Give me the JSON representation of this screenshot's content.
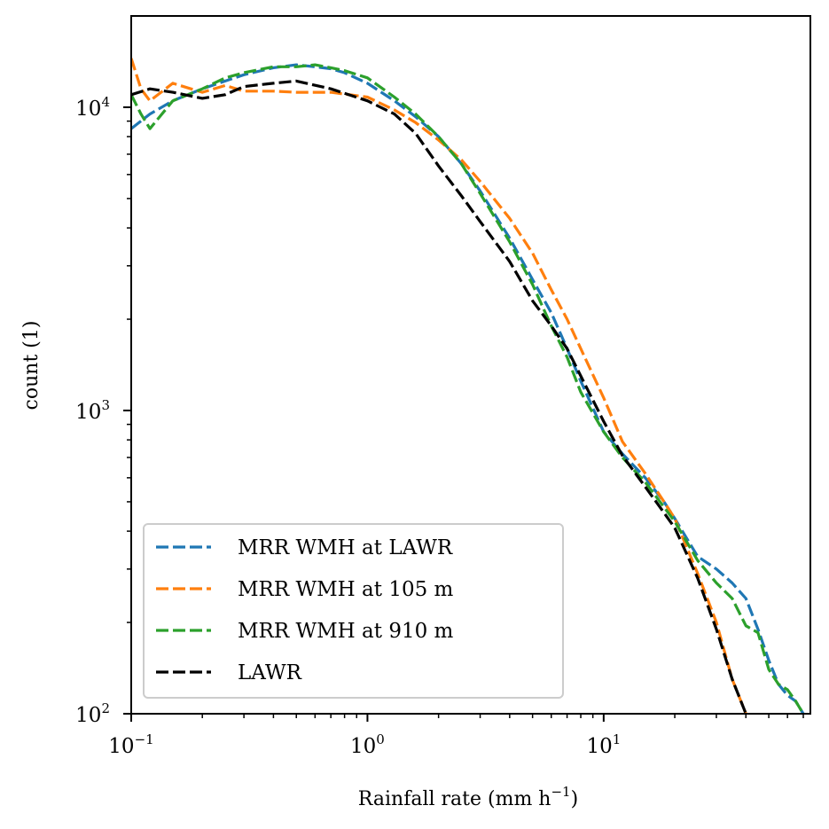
{
  "chart_data": {
    "type": "line",
    "xscale": "log",
    "yscale": "log",
    "xlabel_base": "Rainfall rate (mm h",
    "xlabel_exp": "−1",
    "xlabel_close": ")",
    "ylabel": "count (1)",
    "xlim": [
      0.1,
      75
    ],
    "ylim": [
      100,
      20000
    ],
    "x_ticks": [
      {
        "value": 0.1,
        "base": "10",
        "exp": "−1"
      },
      {
        "value": 1,
        "base": "10",
        "exp": "0"
      },
      {
        "value": 10,
        "base": "10",
        "exp": "1"
      }
    ],
    "y_ticks": [
      {
        "value": 100,
        "base": "10",
        "exp": "2"
      },
      {
        "value": 1000,
        "base": "10",
        "exp": "3"
      },
      {
        "value": 10000,
        "base": "10",
        "exp": "4"
      }
    ],
    "legend_position": "lower-left",
    "series": [
      {
        "name": "MRR WMH at LAWR",
        "color": "#1f77b4",
        "x": [
          0.1,
          0.12,
          0.15,
          0.2,
          0.25,
          0.3,
          0.4,
          0.5,
          0.6,
          0.7,
          0.8,
          1.0,
          1.3,
          1.6,
          2.0,
          2.5,
          3.0,
          4.0,
          5.0,
          6.0,
          7.0,
          8.0,
          10,
          12,
          15,
          18,
          20,
          25,
          30,
          35,
          40,
          45,
          50,
          55,
          60,
          65,
          70
        ],
        "values": [
          8500,
          9500,
          10500,
          11500,
          12200,
          12800,
          13500,
          13800,
          13600,
          13400,
          13000,
          12000,
          10500,
          9300,
          8000,
          6500,
          5300,
          3700,
          2700,
          2100,
          1600,
          1250,
          850,
          720,
          600,
          500,
          440,
          330,
          300,
          270,
          240,
          190,
          150,
          125,
          115,
          110,
          100
        ]
      },
      {
        "name": "MRR WMH at 105 m",
        "color": "#ff7f0e",
        "x": [
          0.1,
          0.11,
          0.12,
          0.15,
          0.2,
          0.25,
          0.3,
          0.4,
          0.5,
          0.7,
          1.0,
          1.3,
          1.6,
          2.0,
          2.5,
          3.0,
          4.0,
          5.0,
          6.0,
          7.0,
          8.0,
          10,
          12,
          15,
          18,
          20,
          25,
          30,
          35,
          40
        ],
        "values": [
          14500,
          11500,
          10500,
          12000,
          11200,
          11800,
          11300,
          11300,
          11200,
          11200,
          10800,
          9800,
          8900,
          7800,
          6700,
          5700,
          4300,
          3300,
          2500,
          2000,
          1600,
          1100,
          790,
          620,
          500,
          440,
          290,
          200,
          130,
          100
        ]
      },
      {
        "name": "MRR WMH at 910 m",
        "color": "#2ca02c",
        "x": [
          0.1,
          0.11,
          0.12,
          0.15,
          0.2,
          0.25,
          0.3,
          0.4,
          0.5,
          0.6,
          0.7,
          0.8,
          1.0,
          1.3,
          1.6,
          2.0,
          2.5,
          3.0,
          4.0,
          5.0,
          6.0,
          7.0,
          8.0,
          10,
          12,
          15,
          18,
          20,
          25,
          30,
          35,
          40,
          45,
          50,
          55,
          60,
          65,
          70
        ],
        "values": [
          11000,
          9500,
          8500,
          10500,
          11500,
          12500,
          13000,
          13600,
          13600,
          13800,
          13500,
          13200,
          12500,
          10800,
          9500,
          8000,
          6500,
          5200,
          3600,
          2600,
          1900,
          1500,
          1150,
          850,
          700,
          580,
          480,
          430,
          320,
          270,
          240,
          195,
          185,
          140,
          125,
          120,
          110,
          100
        ]
      },
      {
        "name": "LAWR",
        "color": "#000000",
        "x": [
          0.1,
          0.12,
          0.15,
          0.2,
          0.25,
          0.3,
          0.4,
          0.5,
          0.7,
          1.0,
          1.3,
          1.6,
          2.0,
          2.5,
          3.0,
          4.0,
          5.0,
          6.0,
          7.0,
          8.0,
          10,
          12,
          15,
          18,
          20,
          25,
          30,
          35,
          40
        ],
        "values": [
          11000,
          11500,
          11200,
          10700,
          11000,
          11700,
          12000,
          12200,
          11500,
          10500,
          9500,
          8200,
          6400,
          5100,
          4200,
          3100,
          2300,
          1900,
          1600,
          1300,
          920,
          710,
          560,
          460,
          410,
          280,
          190,
          130,
          100
        ]
      }
    ]
  }
}
